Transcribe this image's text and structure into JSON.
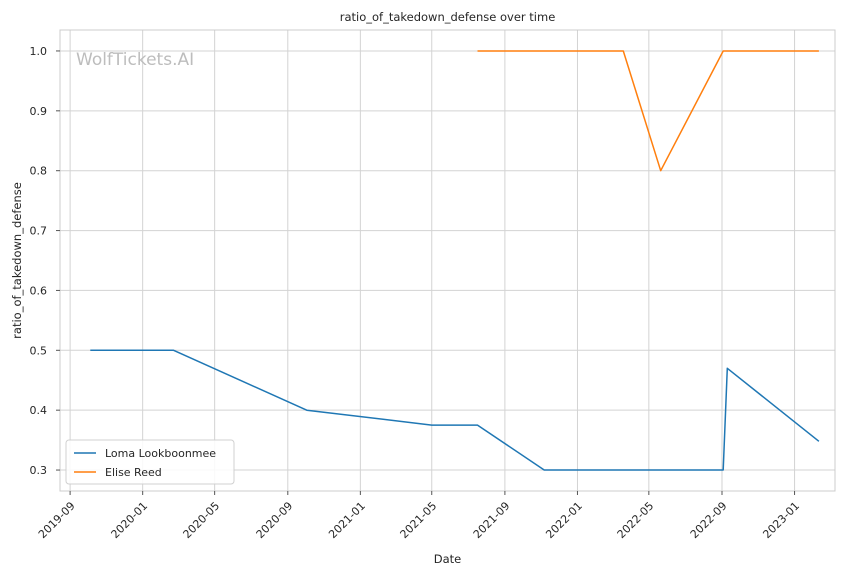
{
  "chart_data": {
    "type": "line",
    "title": "ratio_of_takedown_defense over time",
    "xlabel": "Date",
    "ylabel": "ratio_of_takedown_defense",
    "watermark": "WolfTickets.AI",
    "xlim": [
      "2019-08-15",
      "2023-03-10"
    ],
    "ylim": [
      0.265,
      1.035
    ],
    "xticks": [
      "2019-09-01",
      "2020-01-01",
      "2020-05-01",
      "2020-09-01",
      "2021-01-01",
      "2021-05-01",
      "2021-09-01",
      "2022-01-01",
      "2022-05-01",
      "2022-09-01",
      "2023-01-01"
    ],
    "xtick_labels": [
      "2019-09",
      "2020-01",
      "2020-05",
      "2020-09",
      "2021-01",
      "2021-05",
      "2021-09",
      "2022-01",
      "2022-05",
      "2022-09",
      "2023-01"
    ],
    "yticks": [
      0.3,
      0.4,
      0.5,
      0.6,
      0.7,
      0.8,
      0.9,
      1.0
    ],
    "ytick_labels": [
      "0.3",
      "0.4",
      "0.5",
      "0.6",
      "0.7",
      "0.8",
      "0.9",
      "1.0"
    ],
    "grid": true,
    "legend_position": "lower-left",
    "series": [
      {
        "name": "Loma Lookboonmee",
        "color": "#1f77b4",
        "x": [
          "2019-10-05",
          "2020-02-22",
          "2020-10-03",
          "2021-05-01",
          "2021-07-17",
          "2021-11-06",
          "2022-09-03",
          "2022-09-10",
          "2023-02-11"
        ],
        "y": [
          0.5,
          0.5,
          0.4,
          0.375,
          0.375,
          0.3,
          0.3,
          0.47,
          0.348
        ]
      },
      {
        "name": "Elise Reed",
        "color": "#ff7f0e",
        "x": [
          "2021-07-17",
          "2022-03-19",
          "2022-05-21",
          "2022-09-03",
          "2023-02-11"
        ],
        "y": [
          1.0,
          1.0,
          0.8,
          1.0,
          1.0
        ]
      }
    ]
  }
}
